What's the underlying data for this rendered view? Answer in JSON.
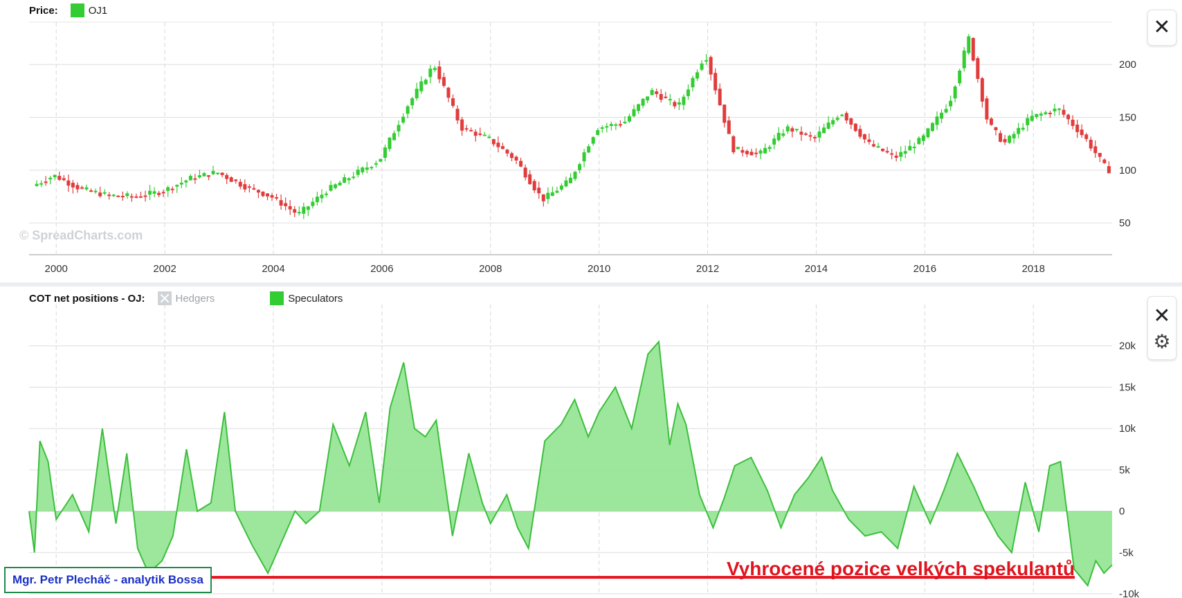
{
  "watermark": "© SpreadCharts.com",
  "author_box": "Mgr. Petr Plecháč - analytik Bossa",
  "annotation": "Vyhrocené pozice velkých spekulantů",
  "colors": {
    "up": "#33cc33",
    "down": "#e03c3c",
    "area_fill": "#98e698",
    "area_line": "#3cbe3c",
    "highlight_line": "#e6141e"
  },
  "price_panel": {
    "legend_title": "Price:",
    "series_name": "OJ1",
    "y_ticks": [
      "200",
      "150",
      "100",
      "50"
    ]
  },
  "cot_panel": {
    "legend_title": "COT net positions - OJ:",
    "hedgers_label": "Hedgers",
    "speculators_label": "Speculators",
    "y_ticks": [
      "20k",
      "15k",
      "10k",
      "5k",
      "0",
      "-5k",
      "-10k"
    ]
  },
  "x_ticks": [
    "2000",
    "2002",
    "2004",
    "2006",
    "2008",
    "2010",
    "2012",
    "2014",
    "2016",
    "2018"
  ],
  "controls": {
    "close_icon": "close-icon",
    "settings_icon": "gear-icon"
  },
  "chart_data": [
    {
      "type": "line",
      "title": "Price: OJ1",
      "xlim": [
        1999.5,
        2019.45
      ],
      "ylim": [
        20,
        240
      ],
      "x": [
        1999.6,
        2000.0,
        2000.5,
        2001.0,
        2001.5,
        2002.0,
        2002.5,
        2003.0,
        2003.5,
        2004.0,
        2004.5,
        2005.0,
        2005.5,
        2006.0,
        2006.5,
        2007.0,
        2007.5,
        2008.0,
        2008.5,
        2009.0,
        2009.5,
        2010.0,
        2010.5,
        2011.0,
        2011.5,
        2012.0,
        2012.5,
        2013.0,
        2013.5,
        2014.0,
        2014.5,
        2015.0,
        2015.5,
        2016.0,
        2016.5,
        2016.85,
        2017.2,
        2017.5,
        2018.0,
        2018.5,
        2019.0,
        2019.4
      ],
      "series": [
        {
          "name": "OJ1",
          "values": [
            85,
            95,
            82,
            76,
            75,
            80,
            92,
            98,
            85,
            75,
            58,
            80,
            95,
            110,
            160,
            200,
            140,
            130,
            110,
            72,
            90,
            140,
            145,
            175,
            160,
            210,
            120,
            115,
            140,
            130,
            155,
            125,
            112,
            130,
            165,
            225,
            145,
            125,
            150,
            158,
            130,
            100
          ]
        }
      ]
    },
    {
      "type": "area",
      "title": "COT net positions - OJ",
      "xlim": [
        1999.5,
        2019.45
      ],
      "ylim": [
        -10000,
        25000
      ],
      "x": [
        1999.5,
        1999.6,
        1999.7,
        1999.85,
        2000.0,
        2000.3,
        2000.6,
        2000.85,
        2001.1,
        2001.3,
        2001.5,
        2001.7,
        2001.95,
        2002.15,
        2002.4,
        2002.6,
        2002.85,
        2003.1,
        2003.3,
        2003.6,
        2003.9,
        2004.2,
        2004.4,
        2004.6,
        2004.85,
        2005.1,
        2005.4,
        2005.7,
        2005.95,
        2006.15,
        2006.4,
        2006.6,
        2006.8,
        2007.0,
        2007.3,
        2007.6,
        2007.85,
        2008.0,
        2008.3,
        2008.5,
        2008.7,
        2009.0,
        2009.3,
        2009.55,
        2009.8,
        2010.0,
        2010.3,
        2010.6,
        2010.9,
        2011.1,
        2011.3,
        2011.45,
        2011.6,
        2011.85,
        2012.1,
        2012.3,
        2012.5,
        2012.8,
        2013.1,
        2013.35,
        2013.6,
        2013.85,
        2014.1,
        2014.3,
        2014.6,
        2014.9,
        2015.2,
        2015.5,
        2015.8,
        2016.1,
        2016.35,
        2016.6,
        2016.9,
        2017.1,
        2017.35,
        2017.6,
        2017.85,
        2018.1,
        2018.3,
        2018.5,
        2018.75,
        2019.0,
        2019.15,
        2019.3,
        2019.45
      ],
      "series": [
        {
          "name": "Speculators",
          "values": [
            0,
            -5000,
            8500,
            6000,
            -1000,
            2000,
            -2500,
            10000,
            -1500,
            7000,
            -4500,
            -7500,
            -6000,
            -3000,
            7500,
            0,
            1000,
            12000,
            0,
            -4000,
            -7500,
            -3000,
            0,
            -1500,
            0,
            10500,
            5500,
            12000,
            1000,
            12500,
            18000,
            10000,
            9000,
            11000,
            -3000,
            7000,
            1000,
            -1500,
            2000,
            -2000,
            -4500,
            8500,
            10500,
            13500,
            9000,
            12000,
            15000,
            10000,
            19000,
            20500,
            8000,
            13000,
            10500,
            2000,
            -2000,
            1500,
            5500,
            6500,
            2500,
            -2000,
            2000,
            4000,
            6500,
            2500,
            -1000,
            -3000,
            -2500,
            -4500,
            3000,
            -1500,
            2500,
            7000,
            3000,
            0,
            -3000,
            -5000,
            3500,
            -2500,
            5500,
            6000,
            -7000,
            -9000,
            -6000,
            -7500,
            -6500
          ]
        }
      ]
    }
  ]
}
